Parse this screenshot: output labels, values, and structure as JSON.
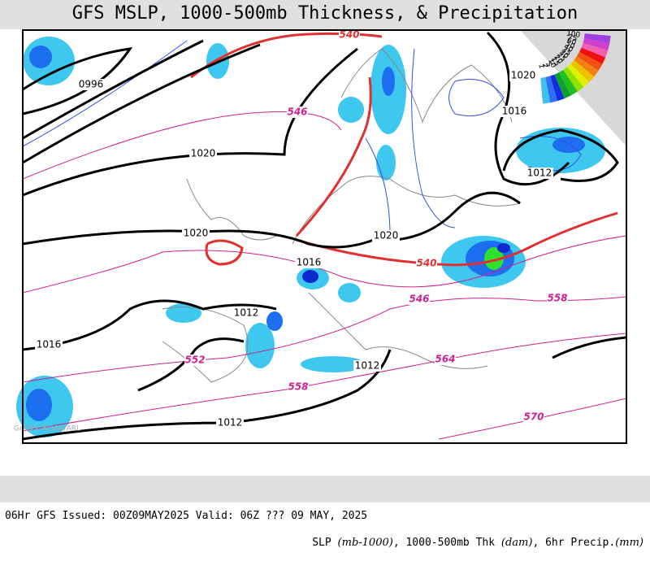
{
  "title": "GFS MSLP, 1000-500mb Thickness, & Precipitation",
  "map": {
    "credit": "GrADS: NOAA/ARL",
    "pressure_labels": [
      "0996",
      "1020",
      "1016",
      "1020",
      "1012",
      "1020",
      "1020",
      "1016",
      "1012",
      "1016",
      "1012",
      "1012"
    ],
    "thickness_labels": [
      "540",
      "546",
      "540",
      "546",
      "558",
      "552",
      "564",
      "558",
      "570"
    ]
  },
  "legend": {
    "labels": [
      "100",
      "75",
      "60",
      "50",
      "40",
      "35",
      "30",
      "25",
      "20",
      "15",
      "10",
      "5",
      "2",
      "1"
    ]
  },
  "footer": {
    "issued": "06Hr GFS Issued: 00Z09MAY2025 Valid: 06Z ??? 09 MAY, 2025",
    "parts": [
      "SLP ",
      "(mb-1000)",
      ", 1000-500mb Thk ",
      "(dam)",
      ", 6hr Precip.",
      "(mm)"
    ]
  }
}
